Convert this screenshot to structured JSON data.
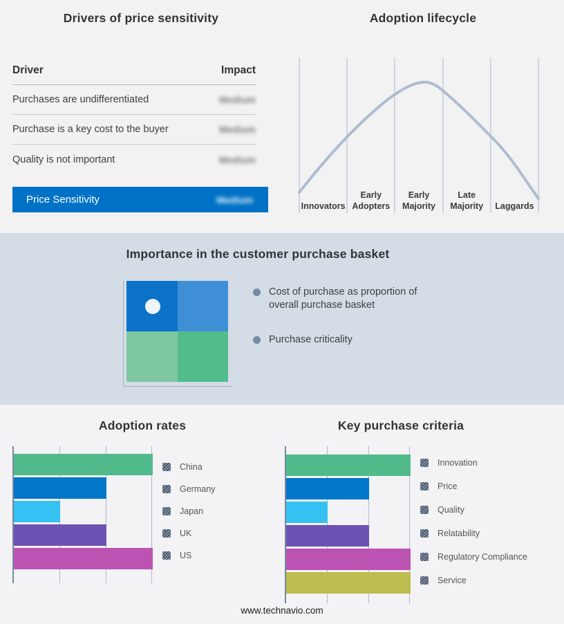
{
  "drivers": {
    "title": "Drivers of price sensitivity",
    "columns": {
      "driver": "Driver",
      "impact": "Impact"
    },
    "rows": [
      {
        "driver": "Purchases are undifferentiated",
        "impact": "Medium",
        "impact_blurred": true
      },
      {
        "driver": "Purchase is a key cost to the buyer",
        "impact": "Medium",
        "impact_blurred": true
      },
      {
        "driver": "Quality is not important",
        "impact": "Medium",
        "impact_blurred": true
      }
    ],
    "highlight_row": {
      "driver": "Price Sensitivity",
      "impact": "Medium",
      "impact_blurred": true,
      "color": "#0072C6"
    }
  },
  "lifecycle": {
    "title": "Adoption lifecycle",
    "stages": [
      [
        "Innovators"
      ],
      [
        "Early",
        "Adopters"
      ],
      [
        "Early",
        "Majority"
      ],
      [
        "Late",
        "Majority"
      ],
      [
        "Laggards"
      ]
    ],
    "curve_color": "#AEBCD0",
    "gridline_color": "#aab8cc"
  },
  "basket": {
    "title": "Importance in the customer purchase basket",
    "quadrant_colors": [
      "#0B72C8",
      "#3E8FD6",
      "#7FC6A3",
      "#53BC8D"
    ],
    "marker": "white-dot-top-left-quadrant",
    "bullets": [
      "Cost of purchase as proportion of overall purchase basket",
      "Purchase criticality"
    ]
  },
  "chart_data": [
    {
      "type": "line",
      "title": "Adoption lifecycle",
      "categories": [
        "Innovators",
        "Early Adopters",
        "Early Majority",
        "Late Majority",
        "Laggards"
      ],
      "description": "bell curve rising from Innovators, peaking in Early Majority, falling through Laggards",
      "x": [
        0,
        1,
        2,
        2.35,
        3,
        4,
        5
      ],
      "y": [
        0.05,
        0.45,
        0.93,
        1.0,
        0.87,
        0.45,
        0.0
      ],
      "xlabel": "",
      "ylabel": "",
      "grid": "vertical-only",
      "legend_position": "none"
    },
    {
      "type": "bar",
      "orientation": "horizontal",
      "title": "Adoption rates",
      "categories": [
        "China",
        "Germany",
        "Japan",
        "UK",
        "US"
      ],
      "values": [
        3,
        2,
        1,
        2,
        3
      ],
      "xlim": [
        0,
        3
      ],
      "gridlines": [
        1,
        2,
        3
      ],
      "colors": [
        "#52BB8B",
        "#0077C8",
        "#35C1F1",
        "#6C52B2",
        "#BC53B2"
      ],
      "xlabel": "",
      "ylabel": "",
      "legend_position": "right"
    },
    {
      "type": "bar",
      "orientation": "horizontal",
      "title": "Key purchase criteria",
      "categories": [
        "Innovation",
        "Price",
        "Quality",
        "Relatability",
        "Regulatory Compliance",
        "Service"
      ],
      "values": [
        3,
        2,
        1,
        2,
        3,
        3
      ],
      "xlim": [
        0,
        3
      ],
      "gridlines": [
        1,
        2,
        3
      ],
      "colors": [
        "#52BB8B",
        "#0077C8",
        "#35C1F1",
        "#6C52B2",
        "#BC53B2",
        "#BCBC4F"
      ],
      "xlabel": "",
      "ylabel": "",
      "legend_position": "right"
    }
  ],
  "footer": {
    "url": "www.technavio.com"
  }
}
